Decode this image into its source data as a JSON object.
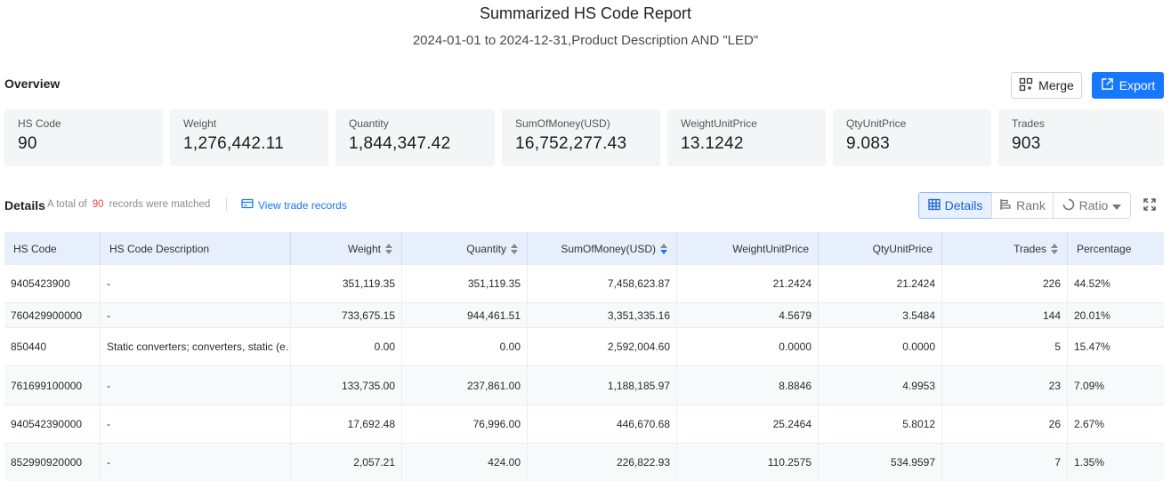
{
  "report": {
    "title": "Summarized HS Code Report",
    "subtitle": "2024-01-01 to 2024-12-31,Product Description AND \"LED\""
  },
  "overview": {
    "label": "Overview",
    "merge_label": "Merge",
    "export_label": "Export",
    "stats": [
      {
        "label": "HS Code",
        "value": "90"
      },
      {
        "label": "Weight",
        "value": "1,276,442.11"
      },
      {
        "label": "Quantity",
        "value": "1,844,347.42"
      },
      {
        "label": "SumOfMoney(USD)",
        "value": "16,752,277.43"
      },
      {
        "label": "WeightUnitPrice",
        "value": "13.1242"
      },
      {
        "label": "QtyUnitPrice",
        "value": "9.083"
      },
      {
        "label": "Trades",
        "value": "903"
      }
    ]
  },
  "details": {
    "label": "Details",
    "total_prefix": "A total of",
    "total_count": "90",
    "total_suffix": "records were matched",
    "view_records_label": "View trade records",
    "view_tabs": {
      "details": "Details",
      "rank": "Rank",
      "ratio": "Ratio"
    }
  },
  "table": {
    "columns": [
      "HS Code",
      "HS Code Description",
      "Weight",
      "Quantity",
      "SumOfMoney(USD)",
      "WeightUnitPrice",
      "QtyUnitPrice",
      "Trades",
      "Percentage"
    ],
    "rows": [
      {
        "code": "9405423900",
        "desc": "-",
        "weight": "351,119.35",
        "qty": "351,119.35",
        "money": "7,458,623.87",
        "wup": "21.2424",
        "qup": "21.2424",
        "trades": "226",
        "pct": "44.52%"
      },
      {
        "code": "760429900000",
        "desc": "-",
        "weight": "733,675.15",
        "qty": "944,461.51",
        "money": "3,351,335.16",
        "wup": "4.5679",
        "qup": "3.5484",
        "trades": "144",
        "pct": "20.01%"
      },
      {
        "code": "850440",
        "desc": "Static converters; converters, static (e…",
        "weight": "0.00",
        "qty": "0.00",
        "money": "2,592,004.60",
        "wup": "0.0000",
        "qup": "0.0000",
        "trades": "5",
        "pct": "15.47%"
      },
      {
        "code": "761699100000",
        "desc": "-",
        "weight": "133,735.00",
        "qty": "237,861.00",
        "money": "1,188,185.97",
        "wup": "8.8846",
        "qup": "4.9953",
        "trades": "23",
        "pct": "7.09%"
      },
      {
        "code": "940542390000",
        "desc": "-",
        "weight": "17,692.48",
        "qty": "76,996.00",
        "money": "446,670.68",
        "wup": "25.2464",
        "qup": "5.8012",
        "trades": "26",
        "pct": "2.67%"
      },
      {
        "code": "852990920000",
        "desc": "-",
        "weight": "2,057.21",
        "qty": "424.00",
        "money": "226,822.93",
        "wup": "110.2575",
        "qup": "534.9597",
        "trades": "7",
        "pct": "1.35%"
      }
    ]
  },
  "icons": {
    "merge": "merge-icon",
    "export": "export-icon",
    "view_records": "card-icon",
    "details": "table-icon",
    "rank": "bar-chart-icon",
    "ratio": "ring-icon",
    "expand": "expand-icon",
    "sort": "sort-icon"
  },
  "colors": {
    "accent": "#1677ff",
    "count": "#e5483b",
    "header_bg": "#e8effc"
  }
}
